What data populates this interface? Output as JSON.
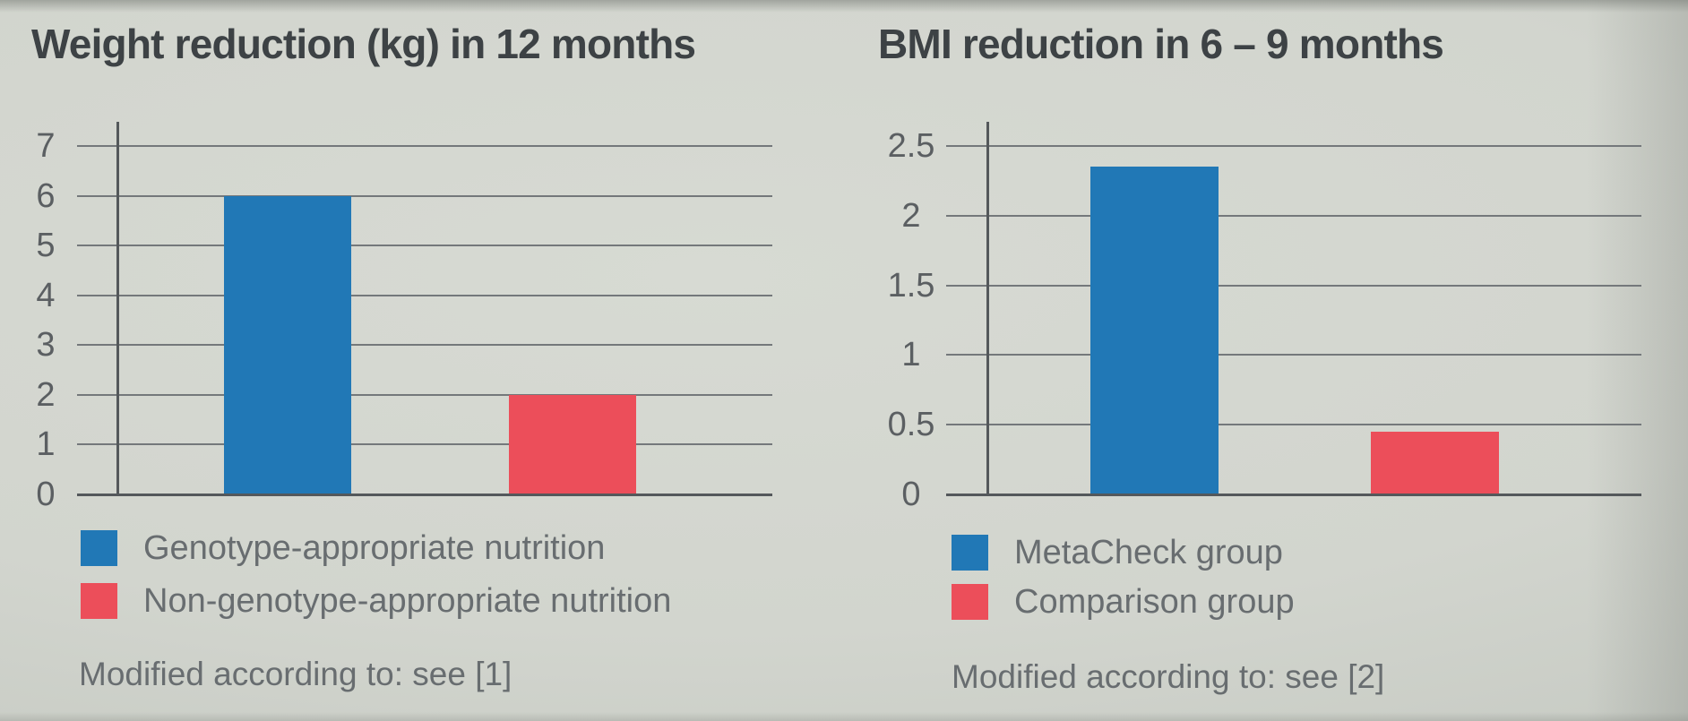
{
  "colors": {
    "bar_blue": "#2178b6",
    "bar_red": "#ec4e5a",
    "background": "#d2d5ce",
    "gridline": "#74787b",
    "axis": "#54585b",
    "title_text": "#3d4245",
    "body_text": "#686d70"
  },
  "chart_data": [
    {
      "type": "bar",
      "title": "Weight reduction (kg) in 12 months",
      "categories": [
        "Genotype-appropriate nutrition",
        "Non-genotype-appropriate nutrition"
      ],
      "values": [
        6,
        2
      ],
      "bar_colors": [
        "blue",
        "red"
      ],
      "ylim": [
        0,
        7
      ],
      "yticks": [
        0,
        1,
        2,
        3,
        4,
        5,
        6,
        7
      ],
      "grid": true,
      "legend_position": "bottom-left",
      "footnote": "Modified according to: see [1]"
    },
    {
      "type": "bar",
      "title": "BMI reduction in 6 – 9 months",
      "categories": [
        "MetaCheck group",
        "Comparison group"
      ],
      "values": [
        2.35,
        0.45
      ],
      "bar_colors": [
        "blue",
        "red"
      ],
      "ylim": [
        0,
        2.5
      ],
      "yticks": [
        0,
        0.5,
        1,
        1.5,
        2,
        2.5
      ],
      "grid": true,
      "legend_position": "bottom-left",
      "footnote": "Modified according to: see [2]"
    }
  ]
}
